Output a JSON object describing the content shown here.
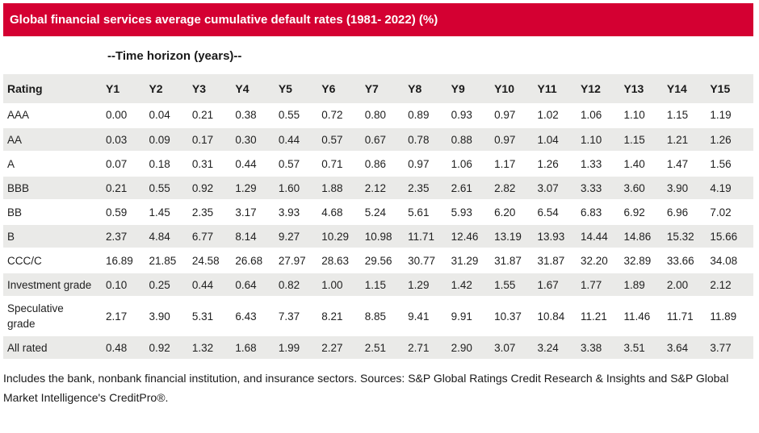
{
  "title": "Global financial services average cumulative default rates (1981- 2022) (%)",
  "time_horizon_label": "--Time horizon (years)--",
  "chart_data": {
    "type": "table",
    "title": "Global financial services average cumulative default rates (1981- 2022) (%)",
    "column_group_label": "--Time horizon (years)--",
    "columns": [
      "Rating",
      "Y1",
      "Y2",
      "Y3",
      "Y4",
      "Y5",
      "Y6",
      "Y7",
      "Y8",
      "Y9",
      "Y10",
      "Y11",
      "Y12",
      "Y13",
      "Y14",
      "Y15"
    ],
    "rows": [
      {
        "rating": "AAA",
        "values": [
          "0.00",
          "0.04",
          "0.21",
          "0.38",
          "0.55",
          "0.72",
          "0.80",
          "0.89",
          "0.93",
          "0.97",
          "1.02",
          "1.06",
          "1.10",
          "1.15",
          "1.19"
        ]
      },
      {
        "rating": "AA",
        "values": [
          "0.03",
          "0.09",
          "0.17",
          "0.30",
          "0.44",
          "0.57",
          "0.67",
          "0.78",
          "0.88",
          "0.97",
          "1.04",
          "1.10",
          "1.15",
          "1.21",
          "1.26"
        ]
      },
      {
        "rating": "A",
        "values": [
          "0.07",
          "0.18",
          "0.31",
          "0.44",
          "0.57",
          "0.71",
          "0.86",
          "0.97",
          "1.06",
          "1.17",
          "1.26",
          "1.33",
          "1.40",
          "1.47",
          "1.56"
        ]
      },
      {
        "rating": "BBB",
        "values": [
          "0.21",
          "0.55",
          "0.92",
          "1.29",
          "1.60",
          "1.88",
          "2.12",
          "2.35",
          "2.61",
          "2.82",
          "3.07",
          "3.33",
          "3.60",
          "3.90",
          "4.19"
        ]
      },
      {
        "rating": "BB",
        "values": [
          "0.59",
          "1.45",
          "2.35",
          "3.17",
          "3.93",
          "4.68",
          "5.24",
          "5.61",
          "5.93",
          "6.20",
          "6.54",
          "6.83",
          "6.92",
          "6.96",
          "7.02"
        ]
      },
      {
        "rating": "B",
        "values": [
          "2.37",
          "4.84",
          "6.77",
          "8.14",
          "9.27",
          "10.29",
          "10.98",
          "11.71",
          "12.46",
          "13.19",
          "13.93",
          "14.44",
          "14.86",
          "15.32",
          "15.66"
        ]
      },
      {
        "rating": "CCC/C",
        "values": [
          "16.89",
          "21.85",
          "24.58",
          "26.68",
          "27.97",
          "28.63",
          "29.56",
          "30.77",
          "31.29",
          "31.87",
          "31.87",
          "32.20",
          "32.89",
          "33.66",
          "34.08"
        ]
      },
      {
        "rating": "Investment grade",
        "values": [
          "0.10",
          "0.25",
          "0.44",
          "0.64",
          "0.82",
          "1.00",
          "1.15",
          "1.29",
          "1.42",
          "1.55",
          "1.67",
          "1.77",
          "1.89",
          "2.00",
          "2.12"
        ]
      },
      {
        "rating": "Speculative grade",
        "values": [
          "2.17",
          "3.90",
          "5.31",
          "6.43",
          "7.37",
          "8.21",
          "8.85",
          "9.41",
          "9.91",
          "10.37",
          "10.84",
          "11.21",
          "11.46",
          "11.71",
          "11.89"
        ]
      },
      {
        "rating": "All rated",
        "values": [
          "0.48",
          "0.92",
          "1.32",
          "1.68",
          "1.99",
          "2.27",
          "2.51",
          "2.71",
          "2.90",
          "3.07",
          "3.24",
          "3.38",
          "3.51",
          "3.64",
          "3.77"
        ]
      }
    ]
  },
  "footnote": "Includes the bank, nonbank financial institution, and insurance sectors. Sources: S&P Global Ratings Credit Research & Insights and S&P Global Market Intelligence's CreditPro®.",
  "colors": {
    "banner_red": "#D40032",
    "stripe_gray": "#EAEAE8",
    "text": "#1A1A1A"
  }
}
